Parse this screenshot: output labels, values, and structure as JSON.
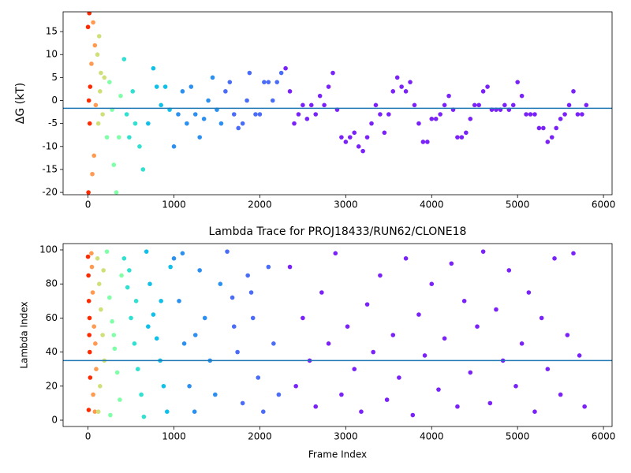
{
  "chart_data": [
    {
      "type": "scatter",
      "ylabel": "ΔG (kT)",
      "xlim": [
        -290,
        6100
      ],
      "xticks": [
        0,
        1000,
        2000,
        3000,
        4000,
        5000,
        6000
      ],
      "ylim": [
        -20.5,
        19.3
      ],
      "yticks": [
        -20,
        -15,
        -10,
        -5,
        0,
        5,
        10,
        15
      ],
      "hline": -1.7,
      "hline_color": "#1f77b4",
      "series": [
        {
          "color": "#ff2a00",
          "x": [
            0,
            5,
            10,
            15,
            20,
            25
          ],
          "values": [
            16,
            -20,
            0,
            19,
            -5,
            3
          ]
        },
        {
          "color": "#ff9a50",
          "x": [
            40,
            50,
            60,
            70,
            80,
            90
          ],
          "values": [
            8,
            -16,
            17,
            -12,
            12,
            -1
          ]
        },
        {
          "color": "#d0e078",
          "x": [
            110,
            120,
            130,
            140,
            150,
            170,
            190
          ],
          "values": [
            10,
            -5,
            14,
            2,
            6,
            -3,
            5
          ]
        },
        {
          "color": "#80ffa8",
          "x": [
            220,
            250,
            280,
            300,
            330,
            360,
            380
          ],
          "values": [
            -8,
            4,
            -2,
            -14,
            -20,
            -8,
            1
          ]
        },
        {
          "color": "#30e0d0",
          "x": [
            420,
            450,
            480,
            520,
            550,
            600,
            640
          ],
          "values": [
            9,
            -3,
            -8,
            2,
            -5,
            -10,
            -15
          ]
        },
        {
          "color": "#10c0e8",
          "x": [
            700,
            760,
            800,
            850,
            900,
            950
          ],
          "values": [
            -5,
            7,
            3,
            -1,
            3,
            -2
          ]
        },
        {
          "color": "#2c90f0",
          "x": [
            1000,
            1050,
            1100,
            1150,
            1200,
            1250,
            1300,
            1350,
            1400,
            1450,
            1500,
            1550
          ],
          "values": [
            -10,
            -3,
            2,
            -5,
            3,
            -3,
            -8,
            -4,
            0,
            5,
            -2,
            -5
          ]
        },
        {
          "color": "#4a6cf7",
          "x": [
            1600,
            1650,
            1700,
            1750,
            1800,
            1850,
            1880,
            1950,
            2000,
            2050,
            2100,
            2150,
            2200,
            2250
          ],
          "values": [
            2,
            4,
            -3,
            -6,
            -5,
            0,
            6,
            -3,
            -3,
            4,
            4,
            0,
            4,
            6
          ]
        },
        {
          "color": "#7a22f8",
          "x": [
            2300,
            2350,
            2400,
            2450,
            2500,
            2550,
            2600,
            2650,
            2700,
            2750,
            2800,
            2850,
            2900,
            2950,
            3000,
            3050,
            3100,
            3150,
            3200,
            3250,
            3300,
            3350,
            3400,
            3450,
            3500,
            3550,
            3600,
            3650,
            3700,
            3750,
            3800,
            3850,
            3900,
            3950,
            4000,
            4050,
            4100,
            4150,
            4200,
            4250,
            4300,
            4350,
            4400,
            4450,
            4500,
            4550,
            4600,
            4650,
            4700,
            4750,
            4800,
            4850,
            4900,
            4950,
            5000,
            5050,
            5100,
            5150,
            5200,
            5250,
            5300,
            5350,
            5400,
            5450,
            5500,
            5550,
            5600,
            5650,
            5700,
            5750,
            5800
          ],
          "values": [
            7,
            2,
            -5,
            -3,
            -1,
            -4,
            -1,
            -3,
            1,
            -1,
            3,
            6,
            -2,
            -8,
            -9,
            -8,
            -7,
            -10,
            -11,
            -8,
            -5,
            -1,
            -3,
            -7,
            -3,
            2,
            5,
            3,
            2,
            4,
            -1,
            -5,
            -9,
            -9,
            -4,
            -4,
            -3,
            -1,
            1,
            -2,
            -8,
            -8,
            -7,
            -4,
            -1,
            -1,
            2,
            3,
            -2,
            -2,
            -2,
            -1,
            -2,
            -1,
            4,
            1,
            -3,
            -3,
            -3,
            -6,
            -6,
            -9,
            -8,
            -6,
            -4,
            -3,
            -1,
            2,
            -3,
            -3,
            -1
          ]
        }
      ]
    },
    {
      "type": "scatter",
      "title": "Lambda Trace for PROJ18433/RUN62/CLONE18",
      "xlabel": "Frame Index",
      "ylabel": "Lambda Index",
      "xlim": [
        -290,
        6100
      ],
      "xticks": [
        0,
        1000,
        2000,
        3000,
        4000,
        5000,
        6000
      ],
      "ylim": [
        -3.7,
        103.7
      ],
      "yticks": [
        0,
        20,
        40,
        60,
        80,
        100
      ],
      "hline": 35,
      "hline_color": "#1f77b4",
      "series": [
        {
          "color": "#ff2a00",
          "x": [
            0,
            5,
            10,
            15,
            20,
            25,
            8,
            18
          ],
          "values": [
            96,
            85,
            70,
            50,
            40,
            25,
            6,
            60
          ]
        },
        {
          "color": "#ff9a50",
          "x": [
            40,
            55,
            70,
            85,
            95,
            60,
            45,
            80
          ],
          "values": [
            98,
            75,
            55,
            45,
            30,
            15,
            90,
            5
          ]
        },
        {
          "color": "#d0e078",
          "x": [
            110,
            130,
            150,
            170,
            190,
            140,
            120,
            180
          ],
          "values": [
            95,
            80,
            65,
            50,
            35,
            20,
            5,
            88
          ]
        },
        {
          "color": "#80ffa8",
          "x": [
            220,
            250,
            280,
            310,
            340,
            370,
            390,
            260,
            300
          ],
          "values": [
            99,
            72,
            58,
            42,
            28,
            12,
            85,
            3,
            50
          ]
        },
        {
          "color": "#30e0d0",
          "x": [
            420,
            460,
            500,
            540,
            580,
            620,
            650,
            480,
            560
          ],
          "values": [
            95,
            78,
            60,
            45,
            30,
            15,
            2,
            88,
            70
          ]
        },
        {
          "color": "#10c0e8",
          "x": [
            680,
            720,
            760,
            800,
            840,
            880,
            920,
            960,
            700,
            850
          ],
          "values": [
            99,
            80,
            62,
            48,
            35,
            20,
            5,
            90,
            55,
            70
          ]
        },
        {
          "color": "#2c90f0",
          "x": [
            1000,
            1060,
            1120,
            1180,
            1240,
            1300,
            1360,
            1420,
            1480,
            1540,
            1100,
            1250
          ],
          "values": [
            95,
            70,
            45,
            20,
            5,
            88,
            60,
            35,
            15,
            80,
            98,
            50
          ]
        },
        {
          "color": "#4a6cf7",
          "x": [
            1620,
            1680,
            1740,
            1800,
            1860,
            1920,
            1980,
            2040,
            2100,
            2160,
            2220,
            1700,
            1900
          ],
          "values": [
            99,
            72,
            40,
            10,
            85,
            60,
            25,
            5,
            90,
            45,
            15,
            55,
            75
          ]
        },
        {
          "color": "#7a22f8",
          "x": [
            2350,
            2420,
            2500,
            2580,
            2650,
            2720,
            2800,
            2880,
            2950,
            3020,
            3100,
            3180,
            3250,
            3320,
            3400,
            3480,
            3550,
            3620,
            3700,
            3780,
            3850,
            3920,
            4000,
            4080,
            4150,
            4230,
            4300,
            4380,
            4450,
            4530,
            4600,
            4680,
            4750,
            4830,
            4900,
            4980,
            5050,
            5130,
            5200,
            5280,
            5350,
            5430,
            5500,
            5580,
            5650,
            5720,
            5780
          ],
          "values": [
            90,
            20,
            60,
            35,
            8,
            75,
            45,
            98,
            15,
            55,
            30,
            5,
            68,
            40,
            85,
            12,
            50,
            25,
            95,
            3,
            62,
            38,
            80,
            18,
            48,
            92,
            8,
            70,
            28,
            55,
            99,
            10,
            65,
            35,
            88,
            20,
            45,
            75,
            5,
            60,
            30,
            95,
            15,
            50,
            98,
            38,
            8
          ]
        }
      ]
    }
  ]
}
